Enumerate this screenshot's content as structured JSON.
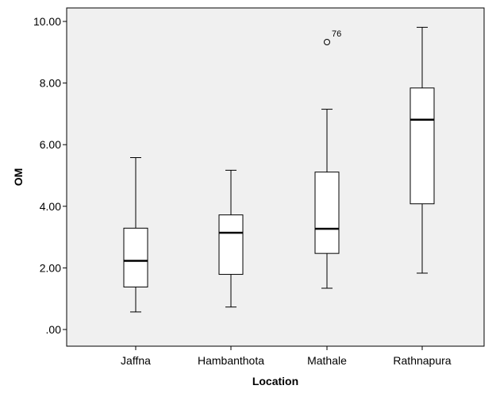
{
  "chart_data": {
    "type": "boxplot",
    "xlabel": "Location",
    "ylabel": "OM",
    "ylim": [
      0,
      10
    ],
    "yticks": [
      0,
      2,
      4,
      6,
      8,
      10
    ],
    "ytick_labels": [
      ".00",
      "2.00",
      "4.00",
      "6.00",
      "8.00",
      "10.00"
    ],
    "categories": [
      "Jaffna",
      "Hambanthota",
      "Mathale",
      "Rathnapura"
    ],
    "boxes": [
      {
        "category": "Jaffna",
        "whisker_low": 0.57,
        "q1": 1.38,
        "median": 2.23,
        "q3": 3.29,
        "whisker_high": 5.58,
        "outliers": []
      },
      {
        "category": "Hambanthota",
        "whisker_low": 0.73,
        "q1": 1.79,
        "median": 3.14,
        "q3": 3.72,
        "whisker_high": 5.17,
        "outliers": []
      },
      {
        "category": "Mathale",
        "whisker_low": 1.34,
        "q1": 2.47,
        "median": 3.27,
        "q3": 5.11,
        "whisker_high": 7.15,
        "outliers": [
          {
            "value": 9.33,
            "label": "76"
          }
        ]
      },
      {
        "category": "Rathnapura",
        "whisker_low": 1.83,
        "q1": 4.08,
        "median": 6.81,
        "q3": 7.84,
        "whisker_high": 9.81,
        "outliers": []
      }
    ],
    "grid": false,
    "plot_background": "#f0f0f0",
    "box_fill": "#ffffff",
    "line_color": "#000000"
  }
}
